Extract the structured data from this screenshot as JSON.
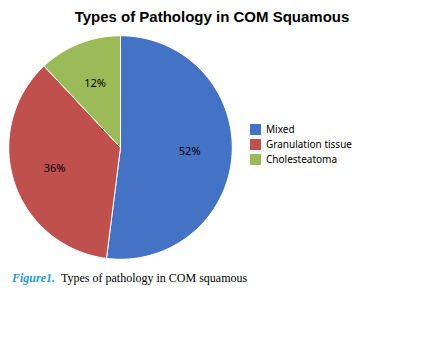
{
  "chart_data": {
    "type": "pie",
    "title": "Types of Pathology in COM Squamous",
    "categories": [
      "Mixed",
      "Granulation tissue",
      "Cholesteatoma"
    ],
    "values": [
      52,
      36,
      12
    ],
    "value_labels": [
      "52%",
      "36%",
      "12%"
    ],
    "colors": [
      "#4472C4",
      "#C0504D",
      "#9BBB59"
    ],
    "data_labels": true,
    "legend": "right",
    "annotations": [
      {
        "text": "Figure1.",
        "color": "#1F9AD9"
      },
      {
        "text": "Types of pathology in COM squamous"
      }
    ]
  }
}
